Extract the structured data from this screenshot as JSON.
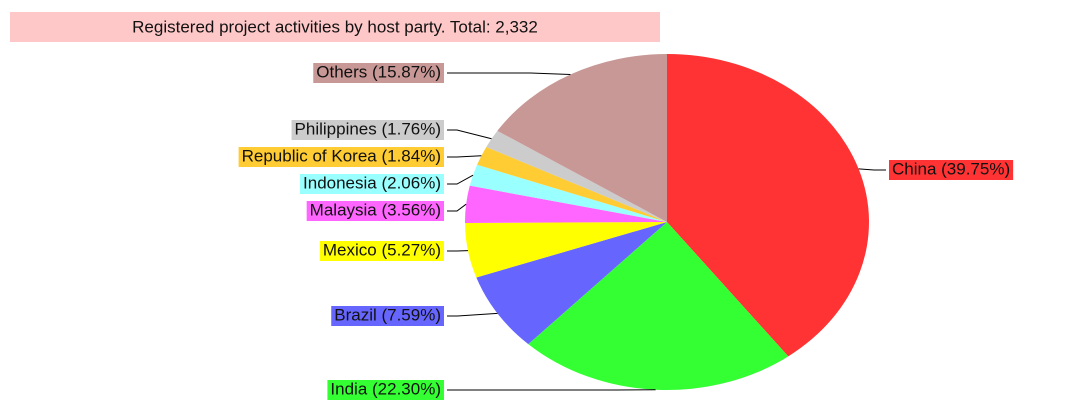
{
  "chart_data": {
    "type": "pie",
    "title": "Registered project activities by host party. Total: 2,332",
    "values": [
      39.75,
      22.3,
      7.59,
      5.27,
      3.56,
      2.06,
      1.84,
      1.76,
      15.87
    ],
    "value_labels": [
      "China (39.75%)",
      "India (22.30%)",
      "Brazil (7.59%)",
      "Mexico (5.27%)",
      "Malaysia (3.56%)",
      "Indonesia (2.06%)",
      "Republic of Korea (1.84%)",
      "Philippines (1.76%)",
      "Others (15.87%)"
    ],
    "colors": [
      "#ff3333",
      "#33ff33",
      "#6666ff",
      "#ffff00",
      "#ff66ff",
      "#99ffff",
      "#ffcc33",
      "#cccccc",
      "#c89896"
    ],
    "start_angle": "top",
    "direction": "clockwise"
  }
}
